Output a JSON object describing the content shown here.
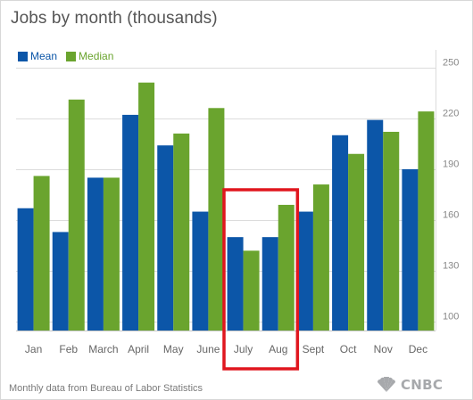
{
  "chart_data": {
    "type": "bar",
    "title": "Jobs by month (thousands)",
    "categories": [
      "Jan",
      "Feb",
      "March",
      "April",
      "May",
      "June",
      "July",
      "Aug",
      "Sept",
      "Oct",
      "Nov",
      "Dec"
    ],
    "series": [
      {
        "name": "Mean",
        "color": "#0c56a8",
        "values": [
          167,
          153,
          185,
          222,
          204,
          165,
          150,
          150,
          165,
          210,
          219,
          190
        ]
      },
      {
        "name": "Median",
        "color": "#6aa42e",
        "values": [
          186,
          231,
          185,
          241,
          211,
          226,
          142,
          169,
          181,
          199,
          212,
          224
        ]
      }
    ],
    "yticks": [
      100,
      130,
      160,
      190,
      220,
      250
    ],
    "ylim": [
      95,
      255
    ],
    "grid": true,
    "axis_side": "right",
    "legend_position": "top-left",
    "highlight": {
      "categories": [
        "July",
        "Aug"
      ],
      "color": "#e0161e"
    }
  },
  "footer": {
    "source": "Monthly data from Bureau of Labor Statistics"
  },
  "logo": {
    "text": "CNBC",
    "icon": "peacock-icon"
  }
}
